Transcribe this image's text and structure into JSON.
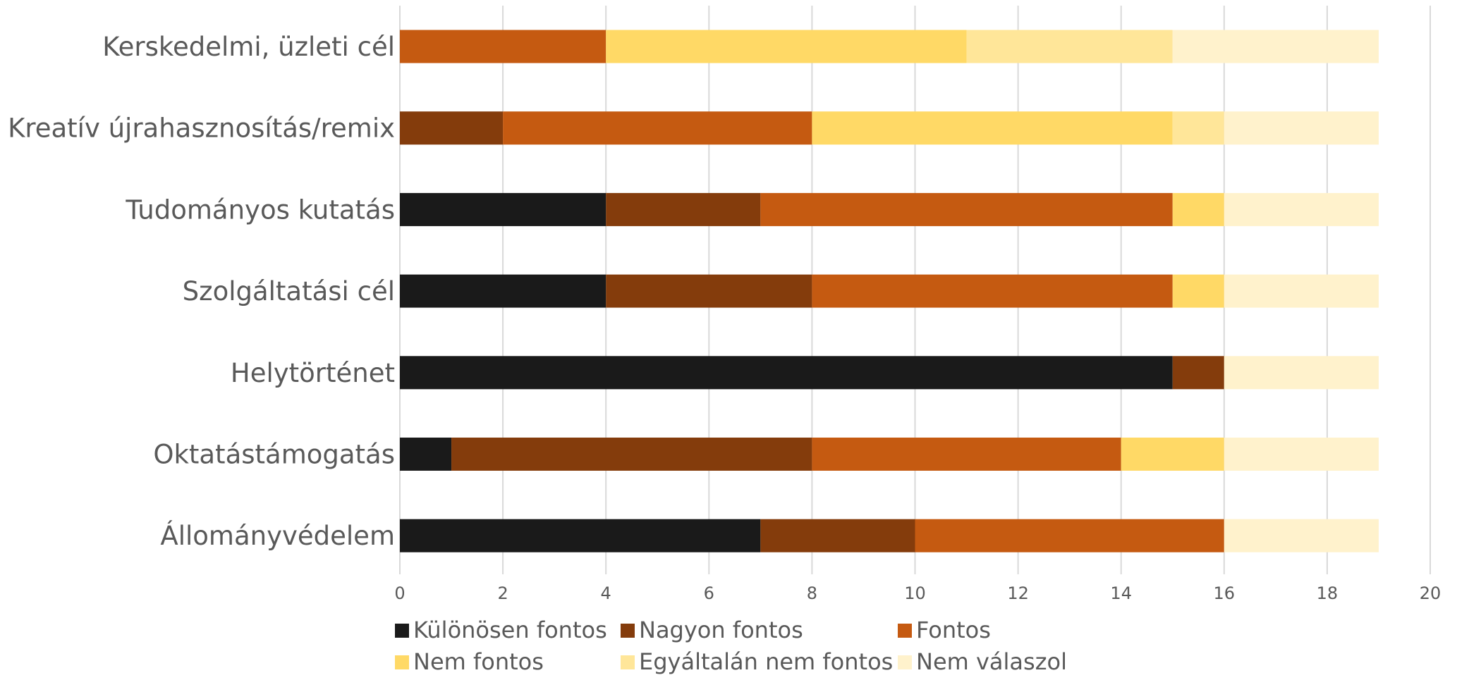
{
  "chart_data": {
    "type": "bar",
    "orientation": "horizontal",
    "stacked": true,
    "categories": [
      "Kerskedelmi, üzleti cél",
      "Kreatív újrahasznosítás/remix",
      "Tudományos kutatás",
      "Szolgáltatási cél",
      "Helytörténet",
      "Oktatástámogatás",
      "Állományvédelem"
    ],
    "series": [
      {
        "name": "Különösen fontos",
        "color": "#1a1a1a",
        "values": [
          0,
          0,
          4,
          4,
          15,
          1,
          7
        ]
      },
      {
        "name": "Nagyon fontos",
        "color": "#843c0c",
        "values": [
          0,
          2,
          3,
          4,
          1,
          7,
          3
        ]
      },
      {
        "name": "Fontos",
        "color": "#c55a11",
        "values": [
          4,
          6,
          8,
          7,
          0,
          6,
          6
        ]
      },
      {
        "name": "Nem fontos",
        "color": "#ffd966",
        "values": [
          7,
          7,
          1,
          1,
          0,
          2,
          0
        ]
      },
      {
        "name": "Egyáltalán nem fontos",
        "color": "#ffe699",
        "values": [
          4,
          1,
          0,
          0,
          0,
          0,
          0
        ]
      },
      {
        "name": "Nem válaszol",
        "color": "#fff2cc",
        "values": [
          4,
          3,
          3,
          3,
          3,
          3,
          3
        ]
      }
    ],
    "xlim": [
      0,
      20
    ],
    "xticks": [
      "0",
      "2",
      "4",
      "6",
      "8",
      "10",
      "12",
      "14",
      "16",
      "18",
      "20"
    ],
    "grid": "vertical",
    "legend_position": "bottom"
  }
}
